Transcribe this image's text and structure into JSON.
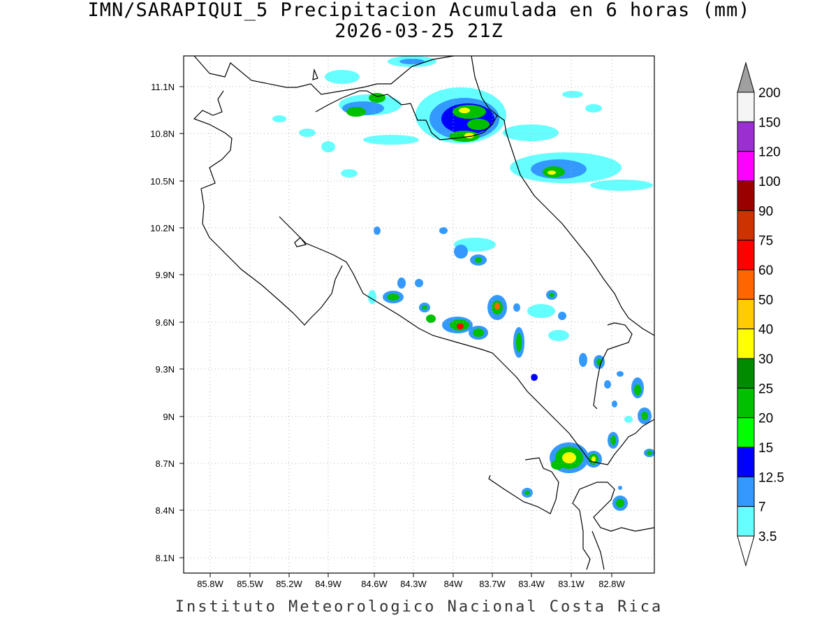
{
  "title": {
    "line1": "IMN/SARAPIQUI_5 Precipitacion Acumulada en 6 horas (mm)",
    "line2": "2026-03-25 21Z"
  },
  "footer": "Instituto Meteorologico Nacional Costa Rica",
  "axes": {
    "lon_ticks": [
      "85.8W",
      "85.5W",
      "85.2W",
      "84.9W",
      "84.6W",
      "84.3W",
      "84W",
      "83.7W",
      "83.4W",
      "83.1W",
      "82.8W"
    ],
    "lat_ticks": [
      "11.1N",
      "10.8N",
      "10.5N",
      "10.2N",
      "9.9N",
      "9.6N",
      "9.3N",
      "9N",
      "8.7N",
      "8.4N",
      "8.1N"
    ]
  },
  "colorbar": {
    "labels": [
      "200",
      "150",
      "120",
      "100",
      "90",
      "75",
      "60",
      "50",
      "40",
      "30",
      "25",
      "20",
      "15",
      "12.5",
      "7",
      "3.5"
    ],
    "colors_top_to_bottom": [
      "#f5f5f5",
      "#9b30d0",
      "#ff00ff",
      "#9b0000",
      "#cc3300",
      "#ff0000",
      "#ff6600",
      "#ffcc00",
      "#ffff00",
      "#008c00",
      "#00c000",
      "#00ff00",
      "#0000ff",
      "#3399ff",
      "#66ffff"
    ],
    "over_color": "#a0a0a0"
  }
}
